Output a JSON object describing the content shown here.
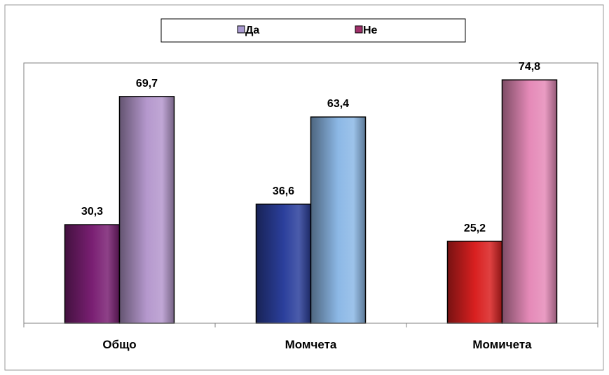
{
  "chart_data": {
    "type": "bar",
    "categories": [
      "Общо",
      "Момчета",
      "Момичета"
    ],
    "series": [
      {
        "name": "Да",
        "values": [
          30.3,
          36.6,
          25.2
        ],
        "colors": [
          "#7a1f73",
          "#2b3f9c",
          "#d92020"
        ],
        "legend_color": "#a99ad1"
      },
      {
        "name": "Не",
        "values": [
          69.7,
          63.4,
          74.8
        ],
        "colors": [
          "#b598cd",
          "#8cb8e6",
          "#e58ab8"
        ],
        "legend_color": "#a0306a"
      }
    ],
    "data_labels": [
      [
        "30,3",
        "36,6",
        "25,2"
      ],
      [
        "69,7",
        "63,4",
        "74,8"
      ]
    ],
    "title": "",
    "xlabel": "",
    "ylabel": "",
    "ylim": [
      0,
      80
    ],
    "grid": false,
    "legend_position": "top"
  }
}
